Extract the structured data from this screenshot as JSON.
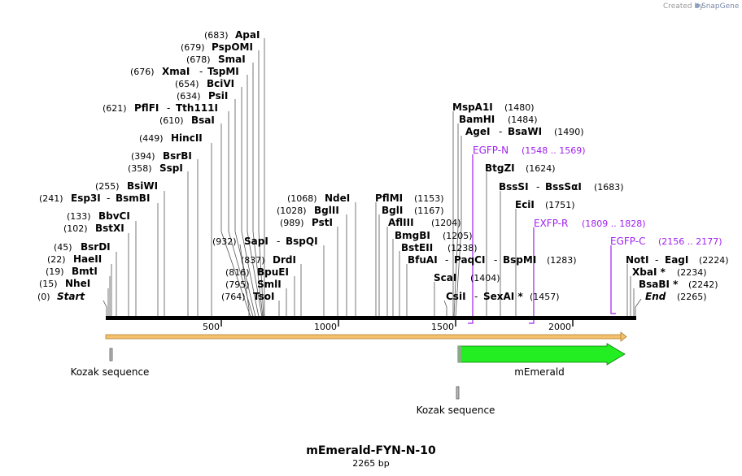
{
  "header": {
    "credit": "Created by",
    "logo": "SnapGene"
  },
  "map": {
    "title": "mEmerald-FYN-N-10",
    "subtitle": "2265 bp",
    "ticks": [
      "500",
      "1000",
      "1500",
      "2000"
    ]
  },
  "sites": [
    {
      "pos": "(683)",
      "name": "ApaI"
    },
    {
      "pos": "(679)",
      "name": "PspOMI"
    },
    {
      "pos": "(678)",
      "name": "SmaI"
    },
    {
      "pos": "(676)",
      "name": "XmaI",
      "dash": "-",
      "name2": "TspMI"
    },
    {
      "pos": "(654)",
      "name": "BciVI"
    },
    {
      "pos": "(634)",
      "name": "PsiI"
    },
    {
      "pos": "(621)",
      "name": "PflFI",
      "dash": "-",
      "name2": "Tth111I"
    },
    {
      "pos": "(610)",
      "name": "BsaI"
    },
    {
      "pos": "(449)",
      "name": "HincII"
    },
    {
      "pos": "(394)",
      "name": "BsrBI"
    },
    {
      "pos": "(358)",
      "name": "SspI"
    },
    {
      "pos": "(255)",
      "name": "BsiWI"
    },
    {
      "pos": "(241)",
      "name": "Esp3I",
      "dash": "-",
      "name2": "BsmBI"
    },
    {
      "pos": "(133)",
      "name": "BbvCI"
    },
    {
      "pos": "(102)",
      "name": "BstXI"
    },
    {
      "pos": "(45)",
      "name": "BsrDI"
    },
    {
      "pos": "(22)",
      "name": "HaeII"
    },
    {
      "pos": "(19)",
      "name": "BmtI"
    },
    {
      "pos": "(15)",
      "name": "NheI"
    },
    {
      "pos": "(0)",
      "name": "Start"
    },
    {
      "pos": "(932)",
      "name": "SapI",
      "dash": "-",
      "name2": "BspQI"
    },
    {
      "pos": "(837)",
      "name": "DrdI"
    },
    {
      "pos": "(816)",
      "name": "BpuEI"
    },
    {
      "pos": "(795)",
      "name": "SmlI"
    },
    {
      "pos": "(764)",
      "name": "TsoI"
    },
    {
      "pos": "(1068)",
      "name": "NdeI"
    },
    {
      "pos": "(1028)",
      "name": "BglII"
    },
    {
      "pos": "(989)",
      "name": "PstI"
    },
    {
      "pos": "(1153)",
      "name": "PflMI"
    },
    {
      "pos": "(1167)",
      "name": "BglI"
    },
    {
      "pos": "(1204)",
      "name": "AflIII"
    },
    {
      "pos": "(1205)",
      "name": "BmgBI"
    },
    {
      "pos": "(1238)",
      "name": "BstEII"
    },
    {
      "pos": "(1283)",
      "name": "BfuAI",
      "dash": "-",
      "name2": "PaqCI",
      "dash2": "-",
      "name3": "BspMI"
    },
    {
      "pos": "(1404)",
      "name": "ScaI"
    },
    {
      "pos": "(1457)",
      "name": "CsiI",
      "dash": "-",
      "name2": "SexAI *"
    },
    {
      "pos": "(1480)",
      "name": "MspA1I"
    },
    {
      "pos": "(1484)",
      "name": "BamHI"
    },
    {
      "pos": "(1490)",
      "name": "AgeI",
      "dash": "-",
      "name2": "BsaWI"
    },
    {
      "pos": "(1624)",
      "name": "BtgZI"
    },
    {
      "pos": "(1683)",
      "name": "BssSI",
      "dash": "-",
      "name2": "BssSαI"
    },
    {
      "pos": "(1751)",
      "name": "EciI"
    },
    {
      "pos": "(2224)",
      "name": "NotI",
      "dash": "-",
      "name2": "EagI"
    },
    {
      "pos": "(2234)",
      "name": "XbaI *"
    },
    {
      "pos": "(2242)",
      "name": "BsaBI *"
    },
    {
      "pos": "(2265)",
      "name": "End"
    }
  ],
  "primers": [
    {
      "name": "EGFP-N",
      "range": "(1548 .. 1569)"
    },
    {
      "name": "EXFP-R",
      "range": "(1809 .. 1828)"
    },
    {
      "name": "EGFP-C",
      "range": "(2156 .. 2177)"
    }
  ],
  "features": [
    {
      "label": "Kozak sequence"
    },
    {
      "label": "mEmerald"
    },
    {
      "label": "Kozak sequence"
    }
  ],
  "colors": {
    "primer": "#a020f0",
    "orf": "#22ee22",
    "backbone": "#000000",
    "frame": "#f5c06b"
  }
}
